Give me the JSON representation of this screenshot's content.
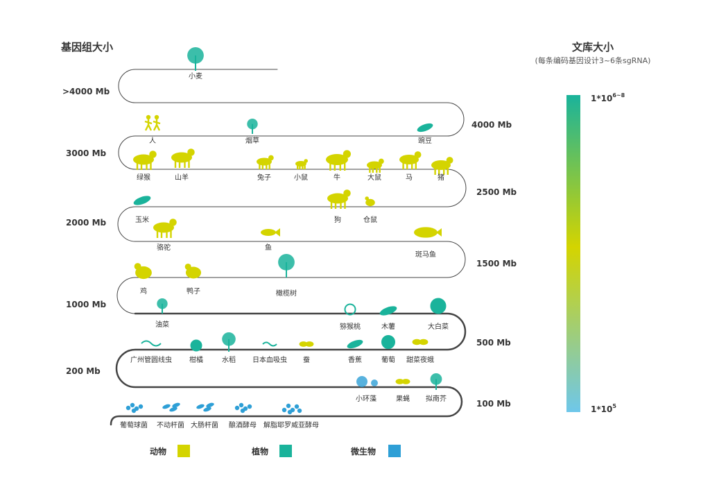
{
  "left_title": "基因组大小",
  "right_title": "文库大小",
  "right_subtitle": "(每条编码基因设计3~6条sgRNA)",
  "scale_top": "1*10",
  "scale_top_sup": "6~8",
  "scale_bottom": "1*10",
  "scale_bottom_sup": "5",
  "colors": {
    "animal": "#d4d400",
    "plant": "#1ab39b",
    "microbe": "#2e9fd6",
    "line": "#444444",
    "gradient_top": "#1ab39b",
    "gradient_mid": "#d4d400",
    "gradient_bottom": "#6ec7ea"
  },
  "size_labels": [
    {
      "id": "gt4000",
      "text": ">4000 Mb"
    },
    {
      "id": "4000",
      "text": "4000 Mb"
    },
    {
      "id": "3000",
      "text": "3000 Mb"
    },
    {
      "id": "2500",
      "text": "2500 Mb"
    },
    {
      "id": "2000",
      "text": "2000 Mb"
    },
    {
      "id": "1500",
      "text": "1500 Mb"
    },
    {
      "id": "1000",
      "text": "1000 Mb"
    },
    {
      "id": "500",
      "text": "500 Mb"
    },
    {
      "id": "200",
      "text": "200 Mb"
    },
    {
      "id": "100",
      "text": "100 Mb"
    }
  ],
  "organisms": [
    {
      "label": "小麦",
      "category": "plant",
      "icon": "wheat-icon"
    },
    {
      "label": "人",
      "category": "animal",
      "icon": "people-icon"
    },
    {
      "label": "烟草",
      "category": "plant",
      "icon": "tobacco-icon"
    },
    {
      "label": "豌豆",
      "category": "plant",
      "icon": "pea-icon"
    },
    {
      "label": "绿猴",
      "category": "animal",
      "icon": "monkey-icon"
    },
    {
      "label": "山羊",
      "category": "animal",
      "icon": "goat-icon"
    },
    {
      "label": "兔子",
      "category": "animal",
      "icon": "rabbit-icon"
    },
    {
      "label": "小鼠",
      "category": "animal",
      "icon": "mouse-icon"
    },
    {
      "label": "牛",
      "category": "animal",
      "icon": "cow-icon"
    },
    {
      "label": "大鼠",
      "category": "animal",
      "icon": "rat-icon"
    },
    {
      "label": "马",
      "category": "animal",
      "icon": "horse-icon"
    },
    {
      "label": "猪",
      "category": "animal",
      "icon": "pig-icon"
    },
    {
      "label": "玉米",
      "category": "plant",
      "icon": "corn-icon"
    },
    {
      "label": "狗",
      "category": "animal",
      "icon": "dog-icon"
    },
    {
      "label": "仓鼠",
      "category": "animal",
      "icon": "hamster-icon"
    },
    {
      "label": "骆驼",
      "category": "animal",
      "icon": "camel-icon"
    },
    {
      "label": "鱼",
      "category": "animal",
      "icon": "fish-icon"
    },
    {
      "label": "斑马鱼",
      "category": "animal",
      "icon": "zebrafish-icon"
    },
    {
      "label": "鸡",
      "category": "animal",
      "icon": "chicken-icon"
    },
    {
      "label": "鸭子",
      "category": "animal",
      "icon": "duck-icon"
    },
    {
      "label": "橄榄树",
      "category": "plant",
      "icon": "olive-tree-icon"
    },
    {
      "label": "油菜",
      "category": "plant",
      "icon": "rapeseed-icon"
    },
    {
      "label": "猕猴桃",
      "category": "plant",
      "icon": "kiwi-icon"
    },
    {
      "label": "木薯",
      "category": "plant",
      "icon": "cassava-icon"
    },
    {
      "label": "大白菜",
      "category": "plant",
      "icon": "cabbage-icon"
    },
    {
      "label": "广州管圆线虫",
      "category": "plant",
      "icon": "worm-icon"
    },
    {
      "label": "柑橘",
      "category": "plant",
      "icon": "citrus-icon"
    },
    {
      "label": "水稻",
      "category": "plant",
      "icon": "rice-icon"
    },
    {
      "label": "日本血吸虫",
      "category": "plant",
      "icon": "schistosoma-icon"
    },
    {
      "label": "蚕",
      "category": "animal",
      "icon": "silkworm-icon"
    },
    {
      "label": "香蕉",
      "category": "plant",
      "icon": "banana-icon"
    },
    {
      "label": "葡萄",
      "category": "plant",
      "icon": "grape-icon"
    },
    {
      "label": "甜菜夜蛾",
      "category": "animal",
      "icon": "moth-icon"
    },
    {
      "label": "小环藻",
      "category": "microbe",
      "icon": "algae-icon"
    },
    {
      "label": "果蝇",
      "category": "animal",
      "icon": "fruit-fly-icon"
    },
    {
      "label": "拟南芥",
      "category": "plant",
      "icon": "arabidopsis-icon"
    },
    {
      "label": "葡萄球菌",
      "category": "microbe",
      "icon": "staphylococcus-icon"
    },
    {
      "label": "不动杆菌",
      "category": "microbe",
      "icon": "acinetobacter-icon"
    },
    {
      "label": "大肠杆菌",
      "category": "microbe",
      "icon": "ecoli-icon"
    },
    {
      "label": "酿酒酵母",
      "category": "microbe",
      "icon": "yeast-icon"
    },
    {
      "label": "解脂耶罗威亚酵母",
      "category": "microbe",
      "icon": "yarrowia-icon"
    }
  ],
  "legend": [
    {
      "label": "动物",
      "category": "animal"
    },
    {
      "label": "植物",
      "category": "plant"
    },
    {
      "label": "微生物",
      "category": "microbe"
    }
  ]
}
